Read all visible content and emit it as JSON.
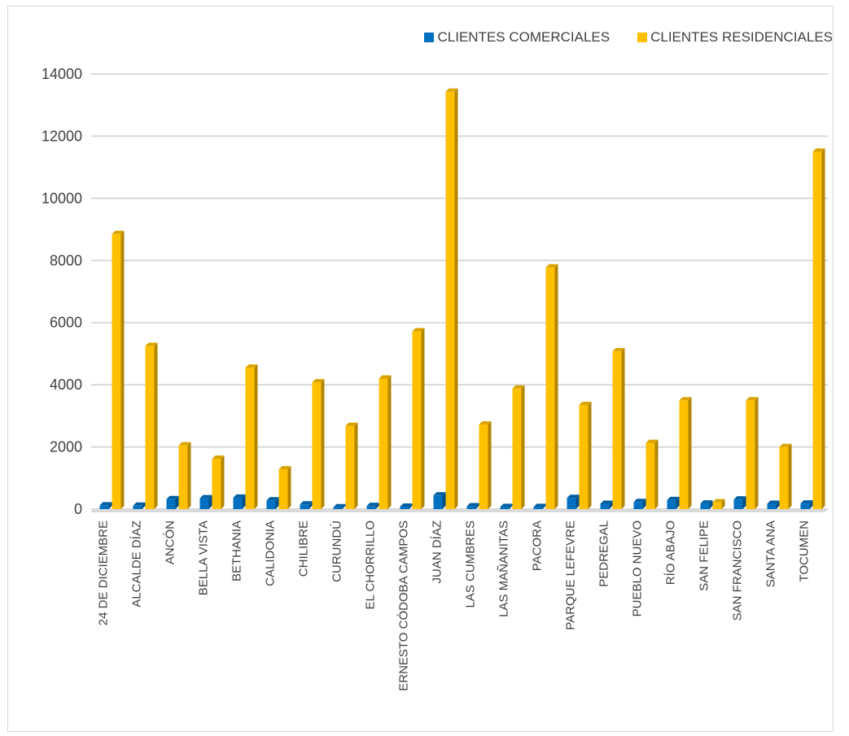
{
  "chart_data": {
    "type": "bar",
    "title": "",
    "xlabel": "",
    "ylabel": "",
    "ylim": [
      0,
      14000
    ],
    "yticks": [
      0,
      2000,
      4000,
      6000,
      8000,
      10000,
      12000,
      14000
    ],
    "grid": true,
    "legend_position": "top-right",
    "categories": [
      "24 DE DICIEMBRE",
      "ALCALDE DÍAZ",
      "ANCÓN",
      "BELLA VISTA",
      "BETHANIA",
      "CALIDONIA",
      "CHILIBRE",
      "CURUNDÚ",
      "EL CHORRILLO",
      "ERNESTO CÓDOBA CAMPOS",
      "JUAN DÍAZ",
      "LAS CUMBRES",
      "LAS MAÑANITAS",
      "PACORA",
      "PARQUE LEFEVRE",
      "PEDREGAL",
      "PUEBLO NUEVO",
      "RÍO ABAJO",
      "SAN FELIPE",
      "SAN FRANCISCO",
      "SANTA ANA",
      "TOCUMEN"
    ],
    "series": [
      {
        "name": "CLIENTES COMERCIALES",
        "color": "#0070C0",
        "values": [
          120,
          110,
          320,
          350,
          370,
          280,
          150,
          60,
          100,
          80,
          440,
          90,
          70,
          70,
          360,
          170,
          230,
          290,
          180,
          310,
          170,
          180
        ]
      },
      {
        "name": "CLIENTES RESIDENCIALES",
        "color": "#FFC000",
        "values": [
          8850,
          5250,
          2050,
          1620,
          4550,
          1280,
          4080,
          2680,
          4200,
          5720,
          13430,
          2720,
          3880,
          7780,
          3350,
          5080,
          2130,
          3500,
          220,
          3500,
          2000,
          11500
        ]
      }
    ]
  }
}
